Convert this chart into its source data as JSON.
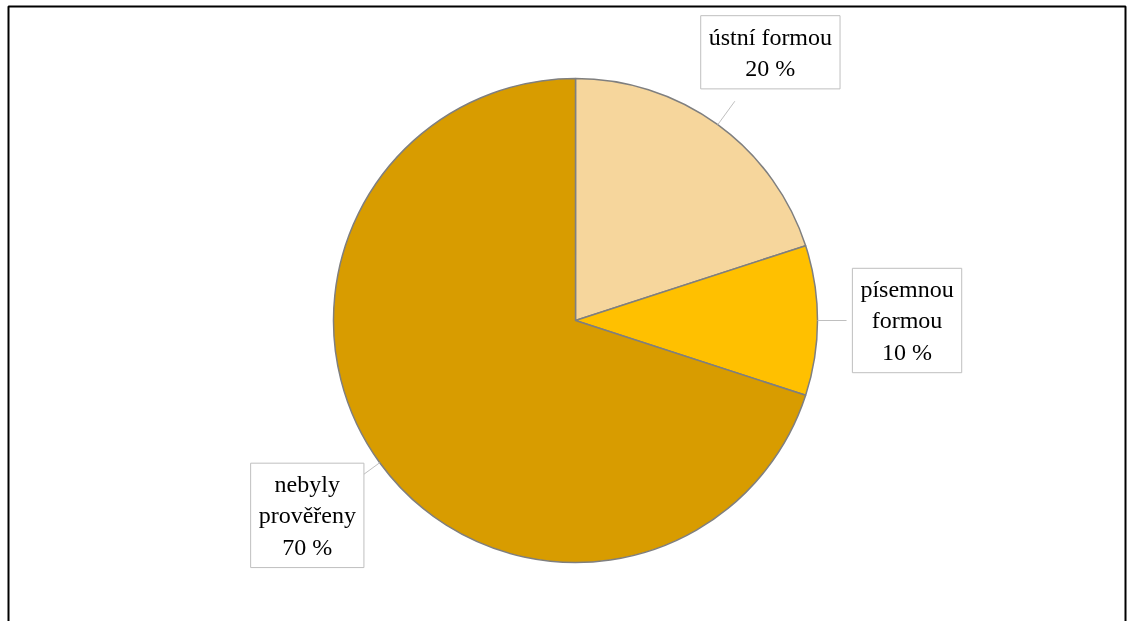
{
  "chart_data": {
    "type": "pie",
    "categories": [
      "ústní formou",
      "písemnou formou",
      "nebyly prověřeny"
    ],
    "values": [
      20,
      10,
      70
    ],
    "colors": [
      "#f6d69c",
      "#ffc000",
      "#d89c00"
    ],
    "value_labels": [
      "20 %",
      "10 %",
      "70 %"
    ]
  }
}
